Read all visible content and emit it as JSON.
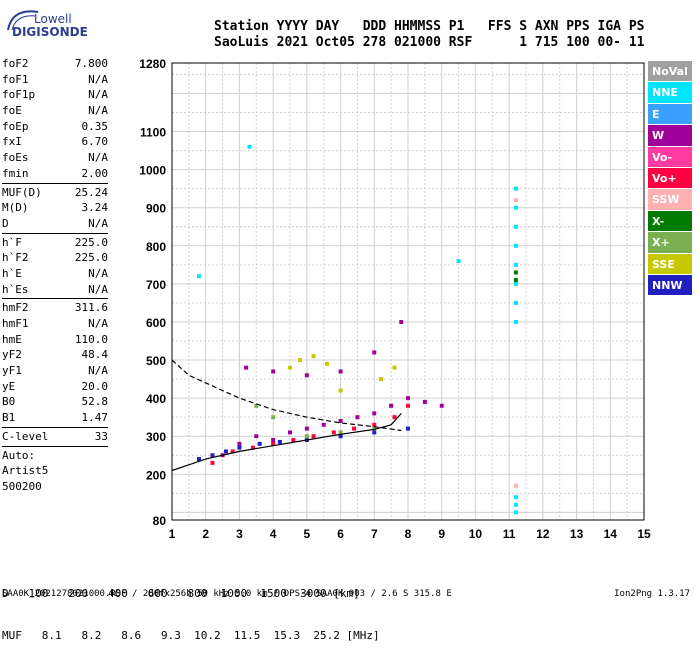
{
  "logo": {
    "top": "Lowell",
    "bottom": "DIGISONDE"
  },
  "header": {
    "line1": "Station YYYY DAY   DDD HHMMSS P1   FFS S AXN PPS IGA PS",
    "line2": "SaoLuis 2021 Oct05 278 021000 RSF      1 715 100 00- 11"
  },
  "params": {
    "block1": [
      {
        "name": "foF2",
        "value": "7.800"
      },
      {
        "name": "foF1",
        "value": "N/A"
      },
      {
        "name": "foF1p",
        "value": "N/A"
      },
      {
        "name": "foE",
        "value": "N/A"
      },
      {
        "name": "foEp",
        "value": "0.35"
      },
      {
        "name": "fxI",
        "value": "6.70"
      },
      {
        "name": "foEs",
        "value": "N/A"
      },
      {
        "name": "fmin",
        "value": "2.00"
      }
    ],
    "block2": [
      {
        "name": "MUF(D)",
        "value": "25.24"
      },
      {
        "name": "M(D)",
        "value": "3.24"
      },
      {
        "name": "D",
        "value": "N/A"
      }
    ],
    "block3": [
      {
        "name": "h`F",
        "value": "225.0"
      },
      {
        "name": "h`F2",
        "value": "225.0"
      },
      {
        "name": "h`E",
        "value": "N/A"
      },
      {
        "name": "h`Es",
        "value": "N/A"
      }
    ],
    "block4": [
      {
        "name": "hmF2",
        "value": "311.6"
      },
      {
        "name": "hmF1",
        "value": "N/A"
      },
      {
        "name": "hmE",
        "value": "110.0"
      },
      {
        "name": "yF2",
        "value": "48.4"
      },
      {
        "name": "yF1",
        "value": "N/A"
      },
      {
        "name": "yE",
        "value": "20.0"
      },
      {
        "name": "B0",
        "value": "52.8"
      },
      {
        "name": "B1",
        "value": "1.47"
      }
    ],
    "clevel": {
      "name": "C-level",
      "value": "33"
    },
    "auto": [
      "Auto:",
      "Artist5",
      "500200"
    ]
  },
  "legend": [
    {
      "label": "NoVal",
      "color": "#a0a0a0"
    },
    {
      "label": "NNE",
      "color": "#00e5ff"
    },
    {
      "label": "E",
      "color": "#3aa0ff"
    },
    {
      "label": "W",
      "color": "#a0009a"
    },
    {
      "label": "Vo-",
      "color": "#ff3aa0"
    },
    {
      "label": "Vo+",
      "color": "#ff0040"
    },
    {
      "label": "SSW",
      "color": "#ffb0b0"
    },
    {
      "label": "X-",
      "color": "#007a00"
    },
    {
      "label": "X+",
      "color": "#7ab050"
    },
    {
      "label": "SSE",
      "color": "#c8c800"
    },
    {
      "label": "NNW",
      "color": "#2020c0"
    }
  ],
  "muf_table": {
    "d_label": "D",
    "d_values": [
      "100",
      "200",
      "400",
      "600",
      "800",
      "1000",
      "1500",
      "3000"
    ],
    "d_unit": "[km]",
    "muf_label": "MUF",
    "muf_values": [
      "8.1",
      "8.2",
      "8.6",
      "9.3",
      "10.2",
      "11.5",
      "15.3",
      "25.2"
    ],
    "muf_unit": "[MHz]"
  },
  "footer": {
    "left": "SAA0K_2021278021000.RSF / 280fx256h 50 kHz 5.0 km / DPS-4 SAA0K 903 / 2.6 S 315.8 E",
    "right": "Ion2Png 1.3.17"
  },
  "chart_data": {
    "type": "scatter",
    "title": "",
    "xlabel": "",
    "ylabel": "",
    "xlim": [
      1,
      15
    ],
    "ylim": [
      80,
      1280
    ],
    "x_ticks": [
      1,
      2,
      3,
      4,
      5,
      6,
      7,
      8,
      9,
      10,
      11,
      12,
      13,
      14,
      15
    ],
    "y_ticks": [
      80,
      200,
      300,
      400,
      500,
      600,
      700,
      800,
      900,
      1000,
      1100,
      1280
    ],
    "grid": true,
    "legend_position": "right",
    "series": [
      {
        "name": "W",
        "color": "#a0009a",
        "points": [
          [
            2.5,
            250
          ],
          [
            3.0,
            280
          ],
          [
            3.5,
            300
          ],
          [
            4.0,
            290
          ],
          [
            4.5,
            310
          ],
          [
            5.0,
            320
          ],
          [
            5.5,
            330
          ],
          [
            6.0,
            340
          ],
          [
            6.5,
            350
          ],
          [
            7.0,
            360
          ],
          [
            7.5,
            380
          ],
          [
            8.0,
            400
          ],
          [
            8.5,
            390
          ],
          [
            9.0,
            380
          ],
          [
            3.2,
            480
          ],
          [
            4.0,
            470
          ],
          [
            5.0,
            460
          ],
          [
            6.0,
            470
          ],
          [
            7.0,
            520
          ],
          [
            7.8,
            600
          ]
        ]
      },
      {
        "name": "Vo+",
        "color": "#ff0040",
        "points": [
          [
            2.2,
            230
          ],
          [
            2.8,
            260
          ],
          [
            3.4,
            270
          ],
          [
            4.0,
            280
          ],
          [
            4.6,
            290
          ],
          [
            5.2,
            300
          ],
          [
            5.8,
            310
          ],
          [
            6.4,
            320
          ],
          [
            7.0,
            330
          ],
          [
            7.6,
            350
          ],
          [
            8.0,
            380
          ]
        ]
      },
      {
        "name": "NNW",
        "color": "#2020c0",
        "points": [
          [
            1.8,
            240
          ],
          [
            2.2,
            250
          ],
          [
            2.6,
            260
          ],
          [
            3.0,
            270
          ],
          [
            3.6,
            280
          ],
          [
            4.2,
            285
          ],
          [
            5.0,
            290
          ],
          [
            6.0,
            300
          ],
          [
            7.0,
            310
          ],
          [
            8.0,
            320
          ]
        ]
      },
      {
        "name": "SSE",
        "color": "#c8c800",
        "points": [
          [
            4.5,
            480
          ],
          [
            4.8,
            500
          ],
          [
            5.2,
            510
          ],
          [
            5.6,
            490
          ],
          [
            6.0,
            420
          ],
          [
            7.2,
            450
          ],
          [
            7.6,
            480
          ]
        ]
      },
      {
        "name": "X+",
        "color": "#7ab050",
        "points": [
          [
            3.5,
            380
          ],
          [
            4.0,
            350
          ],
          [
            5.0,
            300
          ],
          [
            6.0,
            310
          ],
          [
            7.0,
            320
          ]
        ]
      },
      {
        "name": "NNE",
        "color": "#00e5ff",
        "points": [
          [
            1.8,
            720
          ],
          [
            3.3,
            1060
          ],
          [
            11.2,
            600
          ],
          [
            11.2,
            650
          ],
          [
            11.2,
            700
          ],
          [
            11.2,
            750
          ],
          [
            11.2,
            800
          ],
          [
            11.2,
            850
          ],
          [
            11.2,
            900
          ],
          [
            11.2,
            950
          ],
          [
            9.5,
            760
          ],
          [
            11.2,
            100
          ],
          [
            11.2,
            120
          ],
          [
            11.2,
            140
          ]
        ]
      },
      {
        "name": "SSW",
        "color": "#ffb0b0",
        "points": [
          [
            11.2,
            920
          ],
          [
            11.2,
            170
          ]
        ]
      },
      {
        "name": "X-",
        "color": "#007a00",
        "points": [
          [
            11.2,
            730
          ],
          [
            11.2,
            710
          ]
        ]
      }
    ],
    "curves": [
      {
        "name": "trace",
        "color": "#000000",
        "dashed": false,
        "points": [
          [
            1,
            210
          ],
          [
            1.5,
            225
          ],
          [
            2,
            240
          ],
          [
            3,
            260
          ],
          [
            4,
            275
          ],
          [
            5,
            290
          ],
          [
            6,
            305
          ],
          [
            7,
            318
          ],
          [
            7.5,
            330
          ],
          [
            7.8,
            360
          ]
        ]
      },
      {
        "name": "trace",
        "color": "#000000",
        "dashed": true,
        "points": [
          [
            1,
            500
          ],
          [
            1.5,
            460
          ],
          [
            2,
            440
          ],
          [
            3,
            400
          ],
          [
            4,
            370
          ],
          [
            5,
            350
          ],
          [
            6,
            335
          ],
          [
            7,
            325
          ],
          [
            7.8,
            315
          ]
        ]
      }
    ]
  }
}
